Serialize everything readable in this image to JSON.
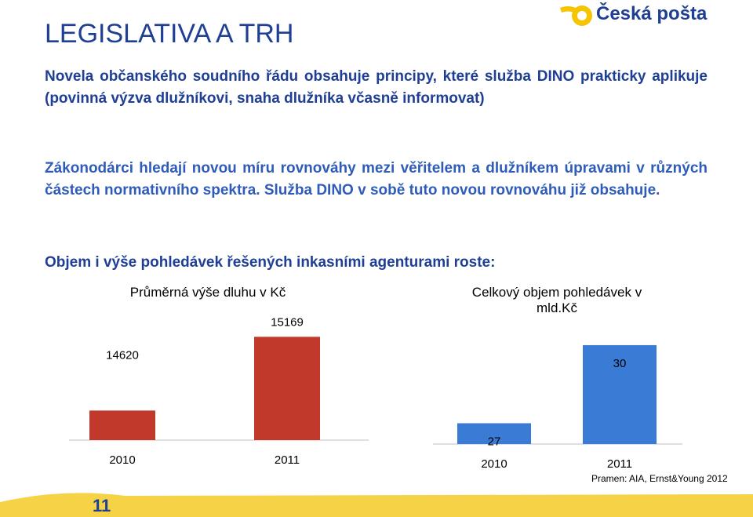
{
  "slide": {
    "title": "LEGISLATIVA A TRH",
    "logo_text": "Česká pošta",
    "paragraph1": "Novela občanského soudního řádu obsahuje principy, které služba DINO prakticky aplikuje (povinná výzva dlužníkovi, snaha dlužníka včasně informovat)",
    "paragraph2": "Zákonodárci hledají novou míru rovnováhy mezi věřitelem a dlužníkem úpravami v různých částech normativního spektra. Služba DINO v sobě tuto novou rovnováhu již obsahuje.",
    "paragraph3": "Objem i výše pohledávek řešených inkasními agenturami roste:",
    "source": "Pramen: AIA, Ernst&Young 2012",
    "page_number": "11"
  },
  "colors": {
    "accent": "#1f3f95",
    "red_bar": "#c0392b",
    "blue_bar": "#3a7bd5",
    "yellow": "#f6d247"
  },
  "chart_data": [
    {
      "type": "bar",
      "title": "Průměrná výše dluhu v Kč",
      "categories": [
        "2010",
        "2011"
      ],
      "values": [
        14620,
        15169
      ],
      "value_labels": [
        "14620",
        "15169"
      ],
      "ylim": [
        14400,
        15200
      ]
    },
    {
      "type": "bar",
      "title": "Celkový objem pohledávek v mld.Kč",
      "categories": [
        "2010",
        "2011"
      ],
      "values": [
        27,
        30
      ],
      "value_labels": [
        "27",
        "30"
      ],
      "ylim": [
        26.2,
        30.3
      ]
    }
  ]
}
